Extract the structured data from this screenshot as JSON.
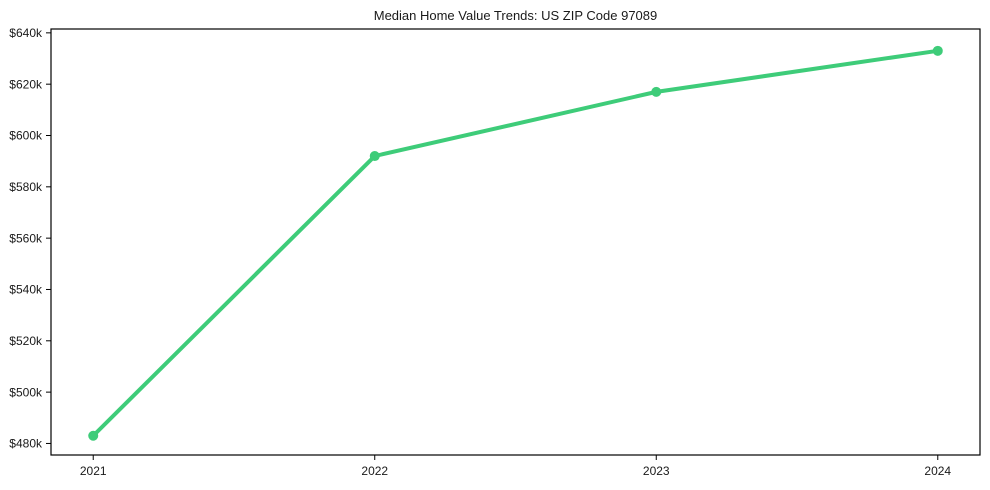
{
  "title": "Median Home Value Trends: US ZIP Code 97089",
  "colors": {
    "line": "#3ecc79",
    "text": "#1a1a1a",
    "axis": "#000000",
    "background": "#ffffff"
  },
  "chart_data": {
    "type": "line",
    "title": "Median Home Value Trends: US ZIP Code 97089",
    "xlabel": "",
    "ylabel": "",
    "x": [
      2021,
      2022,
      2023,
      2024
    ],
    "x_tick_labels": [
      "2021",
      "2022",
      "2023",
      "2024"
    ],
    "values": [
      483000,
      592000,
      617000,
      633000
    ],
    "y_ticks": [
      480000,
      500000,
      520000,
      540000,
      560000,
      580000,
      600000,
      620000,
      640000
    ],
    "y_tick_labels": [
      "$480k",
      "$500k",
      "$520k",
      "$540k",
      "$560k",
      "$580k",
      "$600k",
      "$620k",
      "$640k"
    ],
    "xlim": [
      2020.85,
      2024.15
    ],
    "ylim": [
      475500,
      641500
    ],
    "grid": false,
    "legend": false,
    "marker": "circle",
    "line_width": 4,
    "marker_radius": 5
  }
}
